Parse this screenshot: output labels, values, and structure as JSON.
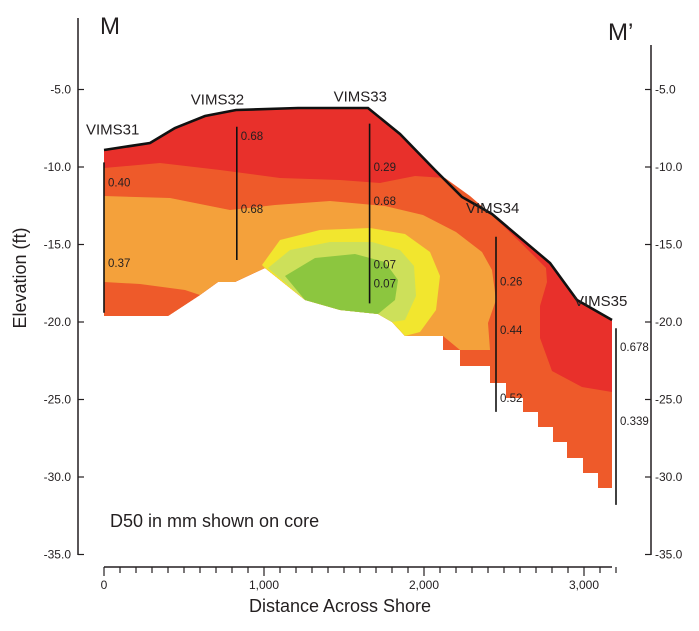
{
  "section": {
    "start_label": "M",
    "end_label": "M’"
  },
  "y_axis": {
    "title": "Elevation (ft)",
    "ticks": [
      "-5.0",
      "-10.0",
      "-15.0",
      "-20.0",
      "-25.0",
      "-30.0",
      "-35.0"
    ],
    "right_ticks": [
      "-5.0",
      "-10.0",
      "-15.0",
      "-20.0",
      "-25.0",
      "-30.0",
      "-35.0"
    ]
  },
  "x_axis": {
    "title": "Distance Across Shore",
    "ticks": [
      "0",
      "1,000",
      "2,000",
      "3,000"
    ]
  },
  "note": "D50 in mm shown on core",
  "colors": {
    "coarse": "#e8302b",
    "mid_coarse": "#ee5a2a",
    "medium": "#f4a13b",
    "fine": "#f2e62e",
    "finer": "#cde05a",
    "finest": "#8cc63f"
  },
  "cores": [
    {
      "name": "VIMS31",
      "distance": 0,
      "top": -9.7,
      "bottom": -19.4,
      "d50": [
        {
          "elev": -11.0,
          "value": "0.40"
        },
        {
          "elev": -16.2,
          "value": "0.37"
        }
      ]
    },
    {
      "name": "VIMS32",
      "distance": 830,
      "top": -7.4,
      "bottom": -16.0,
      "d50": [
        {
          "elev": -8.0,
          "value": "0.68"
        },
        {
          "elev": -12.7,
          "value": "0.68"
        }
      ]
    },
    {
      "name": "VIMS33",
      "distance": 1660,
      "top": -7.2,
      "bottom": -18.8,
      "d50": [
        {
          "elev": -10.0,
          "value": "0.29"
        },
        {
          "elev": -12.2,
          "value": "0.68"
        },
        {
          "elev": -16.3,
          "value": "0.07"
        },
        {
          "elev": -17.5,
          "value": "0.07"
        }
      ]
    },
    {
      "name": "VIMS34",
      "distance": 2450,
      "top": -14.5,
      "bottom": -25.8,
      "d50": [
        {
          "elev": -17.4,
          "value": "0.26"
        },
        {
          "elev": -20.5,
          "value": "0.44"
        },
        {
          "elev": -24.9,
          "value": "0.52"
        }
      ]
    },
    {
      "name": "VIMS35",
      "distance": 3200,
      "top": -20.4,
      "bottom": -31.8,
      "d50": [
        {
          "elev": -21.6,
          "value": "0.678"
        },
        {
          "elev": -26.4,
          "value": "0.339"
        }
      ]
    }
  ]
}
